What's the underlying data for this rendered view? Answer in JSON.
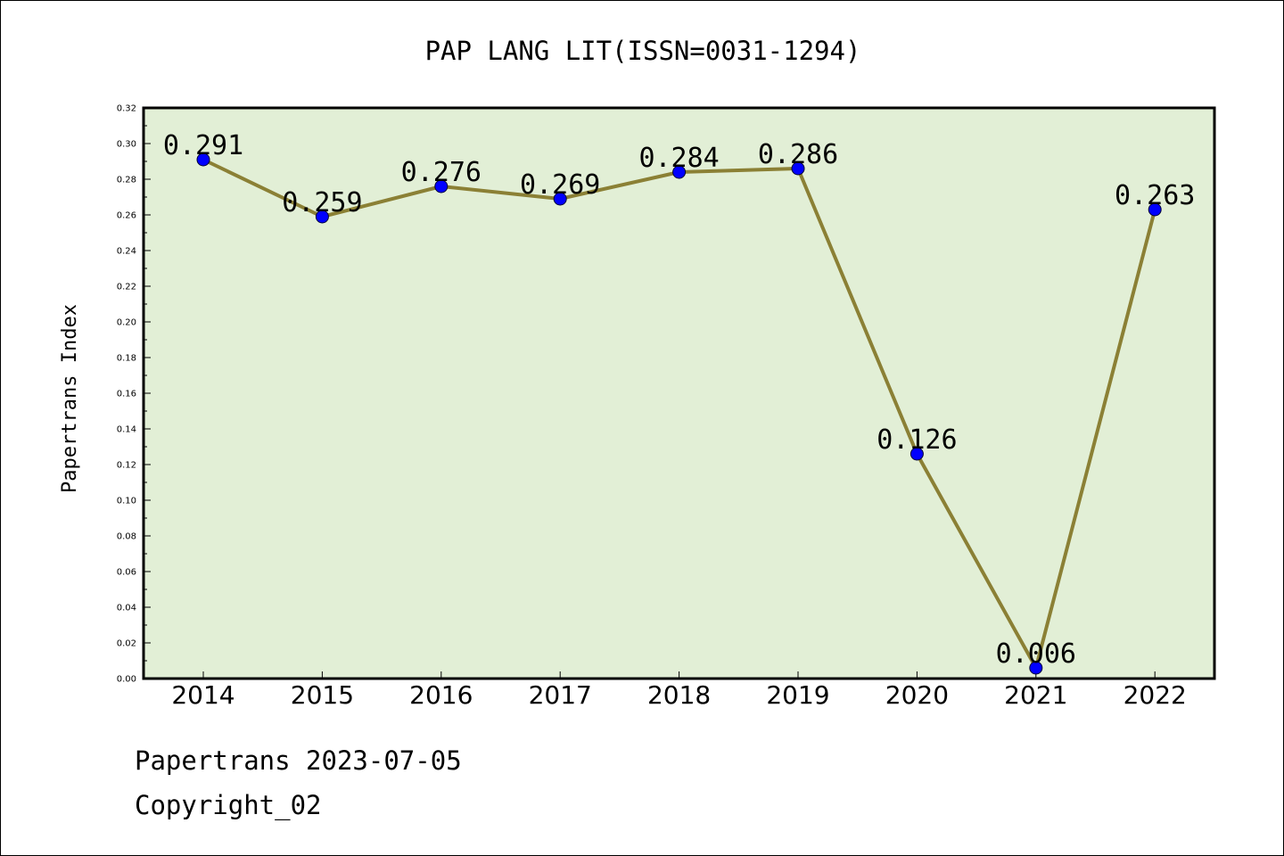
{
  "chart_data": {
    "type": "line",
    "title": "PAP LANG LIT(ISSN=0031-1294)",
    "xlabel": "",
    "ylabel": "Papertrans Index",
    "categories": [
      "2014",
      "2015",
      "2016",
      "2017",
      "2018",
      "2019",
      "2020",
      "2021",
      "2022"
    ],
    "values": [
      0.291,
      0.259,
      0.276,
      0.269,
      0.284,
      0.286,
      0.126,
      0.006,
      0.263
    ],
    "data_labels": [
      "0.291",
      "0.259",
      "0.276",
      "0.269",
      "0.284",
      "0.286",
      "0.126",
      "0.006",
      "0.263"
    ],
    "ylim": [
      0,
      0.32
    ],
    "yticks": [
      "0.00",
      "0.02",
      "0.04",
      "0.06",
      "0.08",
      "0.10",
      "0.12",
      "0.14",
      "0.16",
      "0.18",
      "0.20",
      "0.22",
      "0.24",
      "0.26",
      "0.28",
      "0.30",
      "0.32"
    ],
    "grid": false,
    "colors": {
      "plot_background": "#e2efd6",
      "line": "#8b8035",
      "marker": "#0000ff"
    }
  },
  "footer": {
    "line1": "Papertrans 2023-07-05",
    "line2": "Copyright_02"
  }
}
